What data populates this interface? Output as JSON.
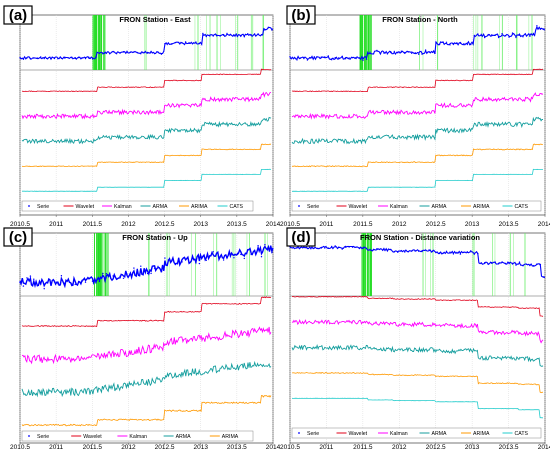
{
  "chart_data": [
    {
      "panel_label": "(a)",
      "title": "FRON Station - East",
      "type": "line",
      "x_ticks": [
        "2010.5",
        "2011",
        "2011.5",
        "2012",
        "2012.5",
        "2013",
        "2013.5",
        "2014"
      ],
      "xlim": [
        2010.5,
        2014
      ],
      "top_series": {
        "name": "Serie",
        "color": "#0000ff",
        "shape": "steps-up",
        "noise": 0.6
      },
      "change_bands": {
        "dense": [
          2011.5,
          2011.68
        ],
        "sparse": [
          2012.25,
          2012.95,
          2013.1,
          2013.25,
          2013.5,
          2013.7,
          2013.85
        ]
      },
      "series": [
        {
          "name": "Wavelet",
          "color": "#e0001a",
          "shape": "steps-up",
          "noise": 0.15
        },
        {
          "name": "Kalman",
          "color": "#ff00ff",
          "shape": "steps-up",
          "noise": 0.8
        },
        {
          "name": "ARMA",
          "color": "#149e9e",
          "shape": "steps-up",
          "noise": 0.8
        },
        {
          "name": "ARIMA",
          "color": "#ff9900",
          "shape": "steps-up",
          "noise": 0.15
        },
        {
          "name": "CATS",
          "color": "#22cccc",
          "shape": "steps-up",
          "noise": 0.05
        }
      ]
    },
    {
      "panel_label": "(b)",
      "title": "FRON Station - North",
      "type": "line",
      "x_ticks": [
        "2010.5",
        "2011",
        "2011.5",
        "2012",
        "2012.5",
        "2013",
        "2013.5",
        "2014"
      ],
      "xlim": [
        2010.5,
        2014
      ],
      "top_series": {
        "name": "Serie",
        "color": "#0000ff",
        "shape": "steps-up",
        "noise": 0.8
      },
      "change_bands": {
        "dense": [
          2011.45,
          2011.62
        ],
        "sparse": [
          2012.3,
          2012.5,
          2013.05,
          2013.15,
          2013.4,
          2013.6,
          2013.8
        ]
      },
      "series": [
        {
          "name": "Wavelet",
          "color": "#e0001a",
          "shape": "steps-up",
          "noise": 0.15
        },
        {
          "name": "Kalman",
          "color": "#ff00ff",
          "shape": "steps-up",
          "noise": 0.8
        },
        {
          "name": "ARMA",
          "color": "#149e9e",
          "shape": "steps-up",
          "noise": 0.9
        },
        {
          "name": "ARIMA",
          "color": "#ff9900",
          "shape": "steps-up",
          "noise": 0.2
        },
        {
          "name": "CATS",
          "color": "#22cccc",
          "shape": "steps-up",
          "noise": 0.05
        }
      ]
    },
    {
      "panel_label": "(c)",
      "title": "FRON Station - Up",
      "type": "line",
      "x_ticks": [
        "2010.5",
        "2011",
        "2011.5",
        "2012",
        "2012.5",
        "2013",
        "2013.5",
        "2014"
      ],
      "xlim": [
        2010.5,
        2014
      ],
      "top_series": {
        "name": "Serie",
        "color": "#0000ff",
        "shape": "ramp-up",
        "noise": 2.0
      },
      "change_bands": {
        "dense": [
          2011.52,
          2011.72
        ],
        "sparse": [
          2012.3,
          2012.55,
          2012.9,
          2013.2,
          2013.45,
          2013.65,
          2013.9
        ]
      },
      "series": [
        {
          "name": "Wavelet",
          "color": "#e0001a",
          "shape": "steps-up",
          "noise": 0.2
        },
        {
          "name": "Kalman",
          "color": "#ff00ff",
          "shape": "ramp-up",
          "noise": 1.6
        },
        {
          "name": "ARMA",
          "color": "#149e9e",
          "shape": "ramp-up",
          "noise": 1.5
        },
        {
          "name": "ARIMA",
          "color": "#ff9900",
          "shape": "steps-up",
          "noise": 0.3
        }
      ]
    },
    {
      "panel_label": "(d)",
      "title": "FRON Station - Distance variation",
      "type": "line",
      "x_ticks": [
        "2010.5",
        "2011",
        "2011.5",
        "2012",
        "2012.5",
        "2013",
        "2013.5",
        "2014"
      ],
      "xlim": [
        2010.5,
        2014
      ],
      "top_series": {
        "name": "Serie",
        "color": "#0000ff",
        "shape": "steps-down",
        "noise": 0.6
      },
      "change_bands": {
        "dense": [
          2011.48,
          2011.62
        ],
        "sparse": [
          2012.35,
          2012.45,
          2013.0,
          2013.3,
          2013.55,
          2013.75
        ]
      },
      "series": [
        {
          "name": "Wavelet",
          "color": "#e0001a",
          "shape": "steps-down",
          "noise": 0.15
        },
        {
          "name": "Kalman",
          "color": "#ff00ff",
          "shape": "steps-down",
          "noise": 0.8
        },
        {
          "name": "ARMA",
          "color": "#149e9e",
          "shape": "steps-down",
          "noise": 0.9
        },
        {
          "name": "ARIMA",
          "color": "#ff9900",
          "shape": "steps-down",
          "noise": 0.2
        },
        {
          "name": "CATS",
          "color": "#22cccc",
          "shape": "steps-down",
          "noise": 0.05
        }
      ]
    }
  ]
}
